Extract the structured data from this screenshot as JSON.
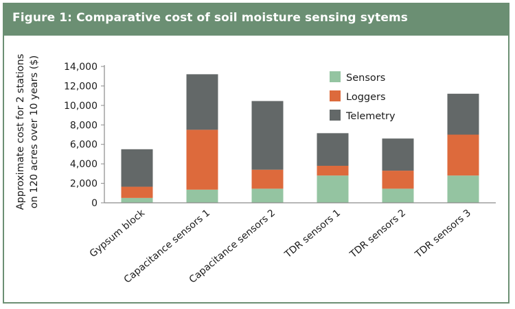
{
  "header": {
    "title": "Figure 1: Comparative cost of soil moisture sensing sytems"
  },
  "colors": {
    "header_bg": "#6b8f73",
    "frame_border": "#6b8f73",
    "axis": "#8a8a8a"
  },
  "chart_data": {
    "type": "bar",
    "stacked": true,
    "title": "",
    "ylabel": "Approximate cost for 2 stations on 120 acres over 10 years ($)",
    "ylabel_lines": [
      "Approximate cost for 2 stations",
      "on 120 acres over 10 years ($)"
    ],
    "xlabel": "",
    "ylim": [
      0,
      14000
    ],
    "yticks": [
      0,
      2000,
      4000,
      6000,
      8000,
      10000,
      12000,
      14000
    ],
    "ytick_labels": [
      "0",
      "2,000",
      "4,000",
      "6,000",
      "8,000",
      "10,000",
      "12,000",
      "14,000"
    ],
    "grid": false,
    "legend_position": "top-right",
    "categories": [
      "Gypsum block",
      "Capacitance sensors 1",
      "Capacitance sensors 2",
      "TDR sensors 1",
      "TDR sensors 2",
      "TDR sensors 3"
    ],
    "series": [
      {
        "name": "Sensors",
        "color": "#94c4a1",
        "values": [
          500,
          1350,
          1450,
          2800,
          1450,
          2800
        ]
      },
      {
        "name": "Loggers",
        "color": "#dd6a3c",
        "values": [
          1150,
          6150,
          1950,
          1000,
          1850,
          4200
        ]
      },
      {
        "name": "Telemetry",
        "color": "#636868",
        "values": [
          3850,
          5700,
          7050,
          3350,
          3300,
          4200
        ]
      }
    ]
  }
}
